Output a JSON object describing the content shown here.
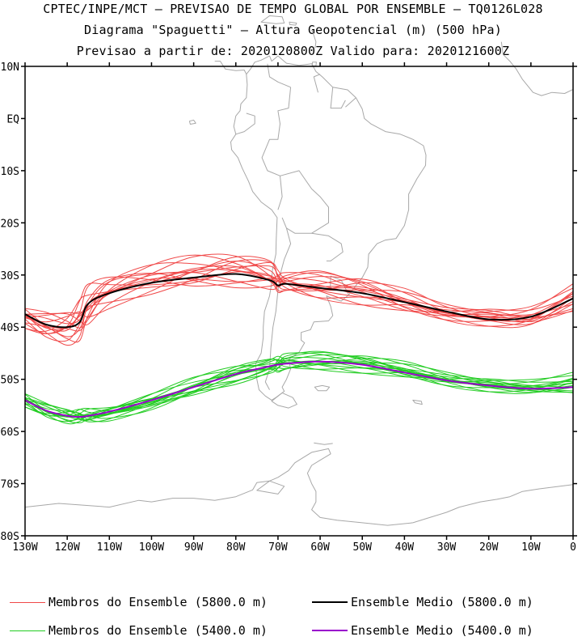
{
  "header": {
    "line1": "CPTEC/INPE/MCT — PREVISAO DE TEMPO GLOBAL POR ENSEMBLE — TQ0126L028",
    "line2": "Diagrama \"Spaguetti\" — Altura Geopotencial (m) (500 hPa)",
    "line3": "Previsao a partir de: 2020120800Z  Valido para: 2020121600Z"
  },
  "map": {
    "lon_range": [
      -130,
      0
    ],
    "lat_range": [
      -80,
      10
    ],
    "lat_ticks": [
      {
        "lat": 10,
        "label": "10N"
      },
      {
        "lat": 0,
        "label": "EQ"
      },
      {
        "lat": -10,
        "label": "10S"
      },
      {
        "lat": -20,
        "label": "20S"
      },
      {
        "lat": -30,
        "label": "30S"
      },
      {
        "lat": -40,
        "label": "40S"
      },
      {
        "lat": -50,
        "label": "50S"
      },
      {
        "lat": -60,
        "label": "60S"
      },
      {
        "lat": -70,
        "label": "70S"
      },
      {
        "lat": -80,
        "label": "80S"
      }
    ],
    "lon_ticks": [
      {
        "lon": -130,
        "label": "130W"
      },
      {
        "lon": -120,
        "label": "120W"
      },
      {
        "lon": -110,
        "label": "110W"
      },
      {
        "lon": -100,
        "label": "100W"
      },
      {
        "lon": -90,
        "label": "90W"
      },
      {
        "lon": -80,
        "label": "80W"
      },
      {
        "lon": -70,
        "label": "70W"
      },
      {
        "lon": -60,
        "label": "60W"
      },
      {
        "lon": -50,
        "label": "50W"
      },
      {
        "lon": -40,
        "label": "40W"
      },
      {
        "lon": -30,
        "label": "30W"
      },
      {
        "lon": -20,
        "label": "20W"
      },
      {
        "lon": -10,
        "label": "10W"
      },
      {
        "lon": 0,
        "label": "0"
      }
    ]
  },
  "colors": {
    "members_5800": "#f04848",
    "mean_5800": "#000000",
    "members_5400": "#22cc22",
    "mean_5400": "#9900cc",
    "coastline": "#a8a8a8"
  },
  "legend": {
    "members_5800": "Membros do Ensemble (5800.0 m)",
    "mean_5800": "Ensemble Medio (5800.0 m)",
    "members_5400": "Membros do Ensemble (5400.0 m)",
    "mean_5400": "Ensemble Medio (5400.0 m)"
  },
  "chart_data": {
    "type": "line",
    "x_unit": "longitude (deg)",
    "y_unit": "latitude (deg)",
    "x": [
      -130,
      -125,
      -120,
      -117,
      -115,
      -110,
      -100,
      -90,
      -80,
      -72,
      -70,
      -68,
      -60,
      -50,
      -40,
      -30,
      -20,
      -10,
      0
    ],
    "series": [
      {
        "name": "Ensemble Medio (5800.0 m)",
        "y": [
          -37.5,
          -39.5,
          -40.0,
          -39.0,
          -35.5,
          -33.5,
          -31.5,
          -30.5,
          -29.8,
          -31.0,
          -32.0,
          -31.7,
          -32.5,
          -33.5,
          -35.2,
          -37.0,
          -38.5,
          -38.0,
          -34.5
        ]
      },
      {
        "name": "Ensemble Medio (5400.0 m)",
        "y": [
          -54.0,
          -56.0,
          -57.0,
          -57.2,
          -57.0,
          -56.2,
          -54.0,
          -51.5,
          -49.0,
          -47.5,
          -47.2,
          -47.0,
          -46.6,
          -47.2,
          -48.7,
          -50.2,
          -51.2,
          -51.8,
          -51.5
        ]
      }
    ],
    "ensemble_spread": [
      {
        "name": "Membros do Ensemble (5800.0 m)",
        "low": [
          -40.5,
          -42.5,
          -43.5,
          -43.0,
          -40.5,
          -36.5,
          -34.0,
          -33.0,
          -32.5,
          -33.0,
          -33.5,
          -33.5,
          -35.0,
          -36.0,
          -37.5,
          -39.0,
          -40.0,
          -40.0,
          -37.5
        ],
        "high": [
          -36.0,
          -37.0,
          -36.5,
          -34.0,
          -31.5,
          -29.5,
          -27.5,
          -26.0,
          -25.5,
          -27.0,
          -29.0,
          -29.5,
          -29.0,
          -30.0,
          -32.5,
          -35.5,
          -36.0,
          -36.0,
          -31.5
        ]
      },
      {
        "name": "Membros do Ensemble (5400.0 m)",
        "low": [
          -55.5,
          -57.5,
          -58.5,
          -58.5,
          -58.5,
          -58.0,
          -56.0,
          -53.5,
          -51.0,
          -49.0,
          -48.8,
          -48.5,
          -48.5,
          -49.0,
          -50.0,
          -51.5,
          -52.5,
          -53.0,
          -53.0
        ],
        "high": [
          -52.5,
          -54.5,
          -55.5,
          -55.5,
          -55.5,
          -55.0,
          -52.5,
          -49.5,
          -47.0,
          -46.0,
          -45.5,
          -45.0,
          -44.5,
          -45.0,
          -46.5,
          -48.5,
          -49.5,
          -50.0,
          -48.5
        ]
      }
    ],
    "members_count": 15
  }
}
